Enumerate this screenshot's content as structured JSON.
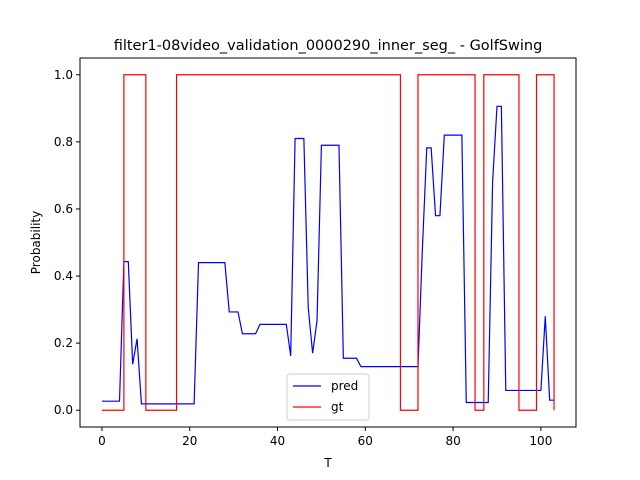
{
  "chart_data": {
    "type": "line",
    "title": "filter1-08video_validation_0000290_inner_seg_ - GolfSwing",
    "xlabel": "T",
    "ylabel": "Probability",
    "xlim": [
      -5,
      108
    ],
    "ylim": [
      -0.05,
      1.05
    ],
    "xticks": [
      0,
      20,
      40,
      60,
      80,
      100
    ],
    "yticks": [
      0.0,
      0.2,
      0.4,
      0.6,
      0.8,
      1.0
    ],
    "xtick_labels": [
      "0",
      "20",
      "40",
      "60",
      "80",
      "100"
    ],
    "ytick_labels": [
      "0.0",
      "0.2",
      "0.4",
      "0.6",
      "0.8",
      "1.0"
    ],
    "legend": {
      "placement": "lower-center"
    },
    "grid": false,
    "series": [
      {
        "name": "pred",
        "color": "#0000ff",
        "x": [
          0,
          1,
          2,
          3,
          4,
          5,
          6,
          7,
          8,
          9,
          10,
          11,
          12,
          13,
          14,
          15,
          16,
          17,
          18,
          19,
          20,
          21,
          22,
          23,
          24,
          25,
          26,
          27,
          28,
          29,
          30,
          31,
          32,
          33,
          34,
          35,
          36,
          37,
          38,
          39,
          40,
          41,
          42,
          43,
          44,
          45,
          46,
          47,
          48,
          49,
          50,
          51,
          52,
          53,
          54,
          55,
          56,
          57,
          58,
          59,
          60,
          61,
          62,
          63,
          64,
          65,
          66,
          67,
          68,
          69,
          70,
          71,
          72,
          73,
          74,
          75,
          76,
          77,
          78,
          79,
          80,
          81,
          82,
          83,
          84,
          85,
          86,
          87,
          88,
          89,
          90,
          91,
          92,
          93,
          94,
          95,
          96,
          97,
          98,
          99,
          100,
          101,
          102,
          103
        ],
        "y": [
          0.027,
          0.027,
          0.027,
          0.027,
          0.027,
          0.443,
          0.443,
          0.137,
          0.213,
          0.019,
          0.019,
          0.019,
          0.019,
          0.019,
          0.019,
          0.019,
          0.019,
          0.019,
          0.019,
          0.019,
          0.019,
          0.019,
          0.44,
          0.44,
          0.44,
          0.44,
          0.44,
          0.44,
          0.44,
          0.293,
          0.293,
          0.293,
          0.228,
          0.228,
          0.228,
          0.228,
          0.256,
          0.256,
          0.256,
          0.256,
          0.256,
          0.256,
          0.256,
          0.162,
          0.81,
          0.81,
          0.81,
          0.305,
          0.17,
          0.267,
          0.79,
          0.79,
          0.79,
          0.79,
          0.79,
          0.155,
          0.155,
          0.155,
          0.155,
          0.13,
          0.13,
          0.13,
          0.13,
          0.13,
          0.13,
          0.13,
          0.13,
          0.13,
          0.13,
          0.13,
          0.13,
          0.13,
          0.13,
          0.48,
          0.782,
          0.782,
          0.58,
          0.58,
          0.82,
          0.82,
          0.82,
          0.82,
          0.82,
          0.023,
          0.023,
          0.023,
          0.023,
          0.023,
          0.023,
          0.68,
          0.906,
          0.906,
          0.059,
          0.059,
          0.059,
          0.059,
          0.059,
          0.059,
          0.059,
          0.059,
          0.059,
          0.28,
          0.03,
          0.03
        ]
      },
      {
        "name": "gt",
        "color": "#ff0000",
        "step": true,
        "x": [
          0,
          1,
          2,
          3,
          4,
          5,
          6,
          7,
          8,
          9,
          10,
          11,
          12,
          13,
          14,
          15,
          16,
          17,
          18,
          19,
          20,
          21,
          22,
          23,
          24,
          25,
          26,
          27,
          28,
          29,
          30,
          31,
          32,
          33,
          34,
          35,
          36,
          37,
          38,
          39,
          40,
          41,
          42,
          43,
          44,
          45,
          46,
          47,
          48,
          49,
          50,
          51,
          52,
          53,
          54,
          55,
          56,
          57,
          58,
          59,
          60,
          61,
          62,
          63,
          64,
          65,
          66,
          67,
          68,
          69,
          70,
          71,
          72,
          73,
          74,
          75,
          76,
          77,
          78,
          79,
          80,
          81,
          82,
          83,
          84,
          85,
          86,
          87,
          88,
          89,
          90,
          91,
          92,
          93,
          94,
          95,
          96,
          97,
          98,
          99,
          100,
          101,
          102,
          103
        ],
        "y": [
          0,
          0,
          0,
          0,
          0,
          1,
          1,
          1,
          1,
          1,
          0,
          0,
          0,
          0,
          0,
          0,
          0,
          1,
          1,
          1,
          1,
          1,
          1,
          1,
          1,
          1,
          1,
          1,
          1,
          1,
          1,
          1,
          1,
          1,
          1,
          1,
          1,
          1,
          1,
          1,
          1,
          1,
          1,
          1,
          1,
          1,
          1,
          1,
          1,
          1,
          1,
          1,
          1,
          1,
          1,
          1,
          1,
          1,
          1,
          1,
          1,
          1,
          1,
          1,
          1,
          1,
          1,
          1,
          0,
          0,
          0,
          0,
          1,
          1,
          1,
          1,
          1,
          1,
          1,
          1,
          1,
          1,
          1,
          1,
          1,
          0,
          0,
          1,
          1,
          1,
          1,
          1,
          1,
          1,
          1,
          0,
          0,
          0,
          0,
          1,
          1,
          1,
          1,
          0
        ]
      }
    ]
  }
}
